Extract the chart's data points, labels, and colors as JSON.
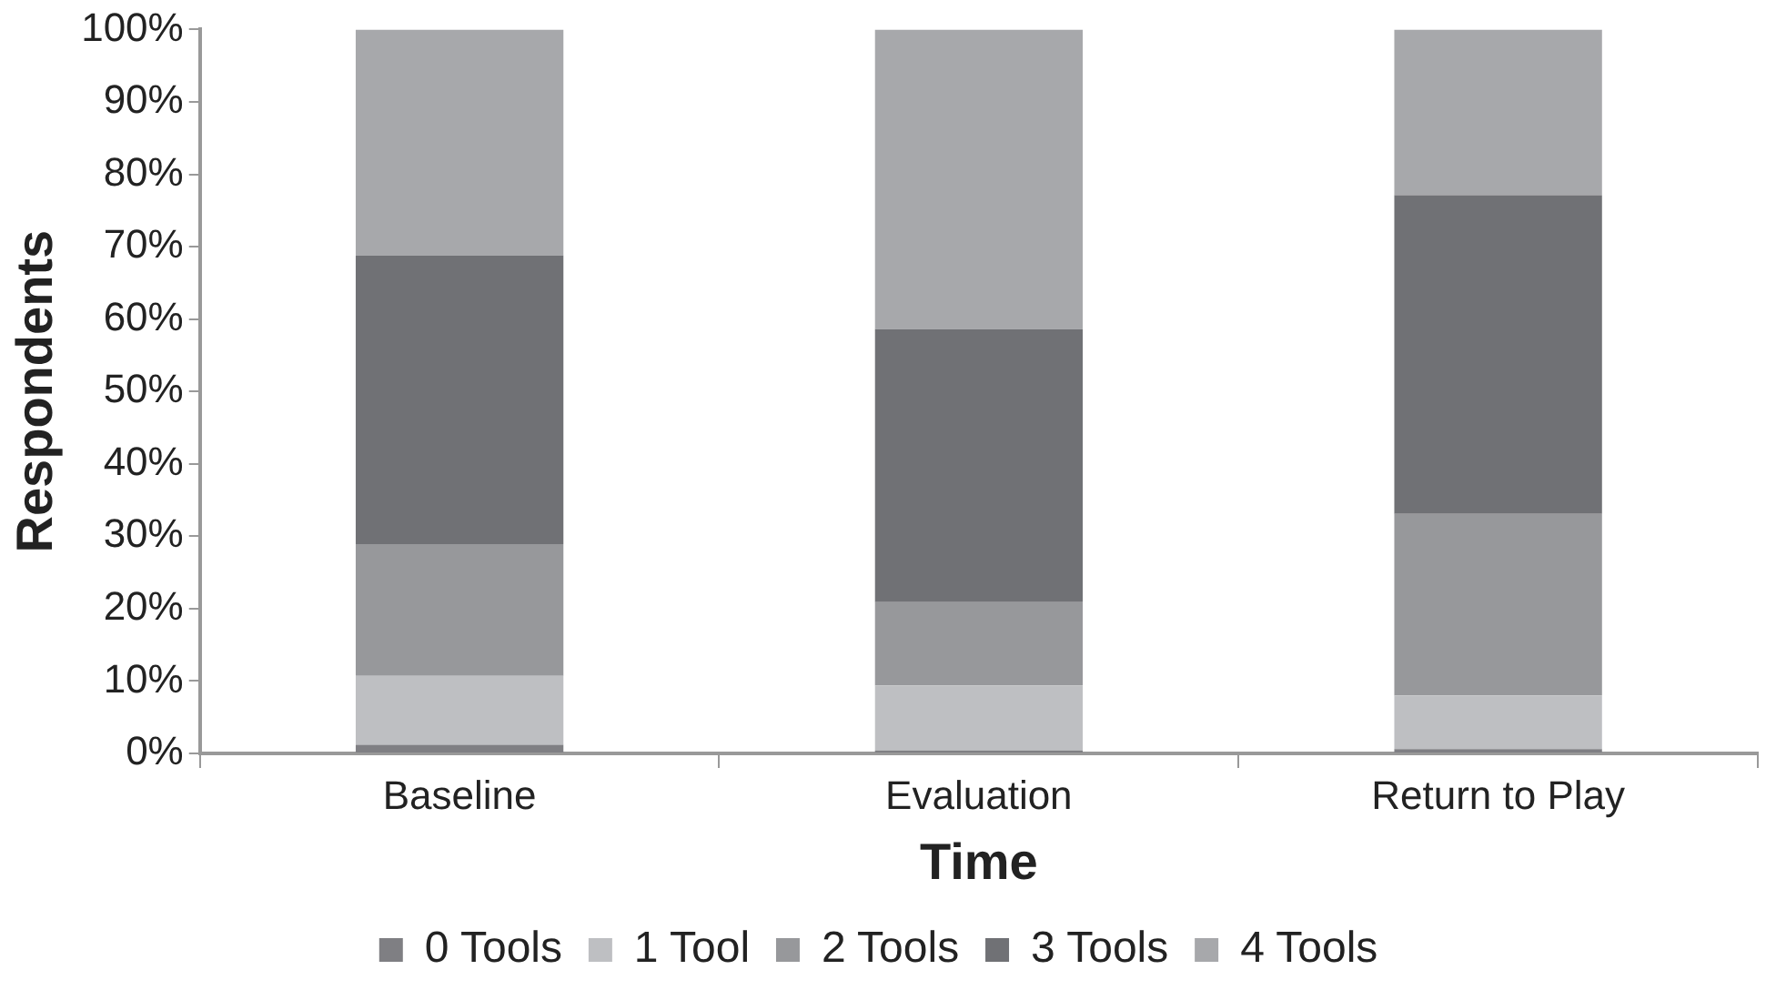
{
  "chart_data": {
    "type": "bar",
    "stacked": true,
    "xlabel": "Time",
    "ylabel": "Respondents",
    "categories": [
      "Baseline",
      "Evaluation",
      "Return to Play"
    ],
    "series": [
      {
        "name": "0 Tools",
        "color": "#7f7f83",
        "values": [
          1.2,
          0.4,
          0.6
        ]
      },
      {
        "name": "1 Tool",
        "color": "#bebfc2",
        "values": [
          9.5,
          9.0,
          7.4
        ]
      },
      {
        "name": "2 Tools",
        "color": "#97989b",
        "values": [
          18.2,
          11.5,
          25.1
        ]
      },
      {
        "name": "3 Tools",
        "color": "#707175",
        "values": [
          39.9,
          37.7,
          44.0
        ]
      },
      {
        "name": "4 Tools",
        "color": "#a7a8ab",
        "values": [
          31.2,
          41.4,
          22.9
        ]
      }
    ],
    "ylim": [
      0,
      100
    ],
    "yticks": [
      {
        "value": 0,
        "label": "0%"
      },
      {
        "value": 10,
        "label": "10%"
      },
      {
        "value": 20,
        "label": "20%"
      },
      {
        "value": 30,
        "label": "30%"
      },
      {
        "value": 40,
        "label": "40%"
      },
      {
        "value": 50,
        "label": "50%"
      },
      {
        "value": 60,
        "label": "60%"
      },
      {
        "value": 70,
        "label": "70%"
      },
      {
        "value": 80,
        "label": "80%"
      },
      {
        "value": 90,
        "label": "90%"
      },
      {
        "value": 100,
        "label": "100%"
      }
    ],
    "grid": false,
    "legend": "bottom"
  }
}
